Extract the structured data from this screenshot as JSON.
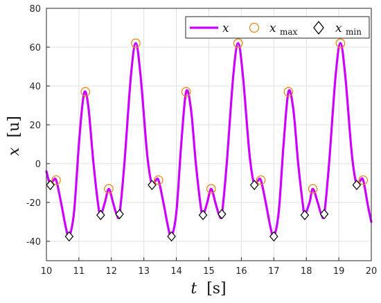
{
  "chart_data": {
    "type": "line",
    "xlabel_var": "t",
    "xlabel_unit": "[s]",
    "ylabel_var": "x",
    "ylabel_unit": "[u]",
    "xlim": [
      10,
      20
    ],
    "ylim": [
      -50,
      80
    ],
    "xticks": [
      "10",
      "11",
      "12",
      "13",
      "14",
      "15",
      "16",
      "17",
      "18",
      "19",
      "20"
    ],
    "yticks": [
      "-40",
      "-20",
      "0",
      "20",
      "40",
      "60",
      "80"
    ],
    "grid": true,
    "legend_position": "top-right",
    "legend": {
      "x_label": "x",
      "xmax_label": "x",
      "xmax_sub": "max",
      "xmin_label": "x",
      "xmin_sub": "min"
    },
    "colors": {
      "line": "#cc00ff",
      "max_marker": "#e8891c",
      "min_marker": "#000000"
    },
    "series": [
      {
        "name": "x",
        "type": "line",
        "points": [
          [
            10.0,
            -4
          ],
          [
            10.12,
            -11
          ],
          [
            10.2,
            -9
          ],
          [
            10.3,
            -8.5
          ],
          [
            10.45,
            -20
          ],
          [
            10.6,
            -33
          ],
          [
            10.7,
            -37.5
          ],
          [
            10.85,
            -25
          ],
          [
            11.0,
            10
          ],
          [
            11.12,
            32
          ],
          [
            11.2,
            37
          ],
          [
            11.3,
            28
          ],
          [
            11.45,
            0
          ],
          [
            11.6,
            -22
          ],
          [
            11.67,
            -26.5
          ],
          [
            11.8,
            -20
          ],
          [
            11.92,
            -13
          ],
          [
            12.05,
            -20
          ],
          [
            12.15,
            -25.5
          ],
          [
            12.25,
            -26
          ],
          [
            12.4,
            0
          ],
          [
            12.6,
            45
          ],
          [
            12.75,
            62
          ],
          [
            12.9,
            45
          ],
          [
            13.1,
            5
          ],
          [
            13.25,
            -11
          ],
          [
            13.35,
            -9
          ],
          [
            13.45,
            -8.5
          ],
          [
            13.6,
            -20
          ],
          [
            13.75,
            -33
          ],
          [
            13.85,
            -37.5
          ],
          [
            14.0,
            -25
          ],
          [
            14.15,
            10
          ],
          [
            14.3,
            37
          ],
          [
            14.45,
            28
          ],
          [
            14.6,
            0
          ],
          [
            14.75,
            -22
          ],
          [
            14.82,
            -26.5
          ],
          [
            14.95,
            -20
          ],
          [
            15.07,
            -13
          ],
          [
            15.2,
            -20
          ],
          [
            15.3,
            -25.5
          ],
          [
            15.4,
            -26
          ],
          [
            15.55,
            0
          ],
          [
            15.75,
            45
          ],
          [
            15.9,
            62
          ],
          [
            16.05,
            45
          ],
          [
            16.25,
            5
          ],
          [
            16.4,
            -11
          ],
          [
            16.5,
            -9
          ],
          [
            16.6,
            -8.5
          ],
          [
            16.75,
            -20
          ],
          [
            16.9,
            -33
          ],
          [
            17.0,
            -37.5
          ],
          [
            17.15,
            -25
          ],
          [
            17.3,
            10
          ],
          [
            17.45,
            37
          ],
          [
            17.6,
            28
          ],
          [
            17.75,
            0
          ],
          [
            17.9,
            -22
          ],
          [
            17.95,
            -26.5
          ],
          [
            18.1,
            -20
          ],
          [
            18.2,
            -13
          ],
          [
            18.35,
            -20
          ],
          [
            18.45,
            -25.5
          ],
          [
            18.55,
            -26
          ],
          [
            18.7,
            0
          ],
          [
            18.9,
            45
          ],
          [
            19.05,
            62
          ],
          [
            19.2,
            45
          ],
          [
            19.4,
            5
          ],
          [
            19.55,
            -11
          ],
          [
            19.65,
            -9
          ],
          [
            19.75,
            -8.5
          ],
          [
            19.9,
            -22
          ],
          [
            20.0,
            -30
          ]
        ]
      },
      {
        "name": "x_max",
        "type": "scatter",
        "marker": "circle",
        "points": [
          [
            10.3,
            -8.5
          ],
          [
            11.2,
            37
          ],
          [
            11.92,
            -13
          ],
          [
            12.75,
            62
          ],
          [
            13.45,
            -8.5
          ],
          [
            14.3,
            37
          ],
          [
            15.07,
            -13
          ],
          [
            15.9,
            62
          ],
          [
            16.6,
            -8.5
          ],
          [
            17.45,
            37
          ],
          [
            18.2,
            -13
          ],
          [
            19.05,
            62
          ],
          [
            19.75,
            -8.5
          ]
        ]
      },
      {
        "name": "x_min",
        "type": "scatter",
        "marker": "diamond",
        "points": [
          [
            10.12,
            -11
          ],
          [
            10.7,
            -37.5
          ],
          [
            11.67,
            -26.5
          ],
          [
            12.25,
            -26
          ],
          [
            13.25,
            -11
          ],
          [
            13.85,
            -37.5
          ],
          [
            14.82,
            -26.5
          ],
          [
            15.4,
            -26
          ],
          [
            16.4,
            -11
          ],
          [
            17.0,
            -37.5
          ],
          [
            17.95,
            -26.5
          ],
          [
            18.55,
            -26
          ],
          [
            19.55,
            -11
          ]
        ]
      }
    ]
  }
}
